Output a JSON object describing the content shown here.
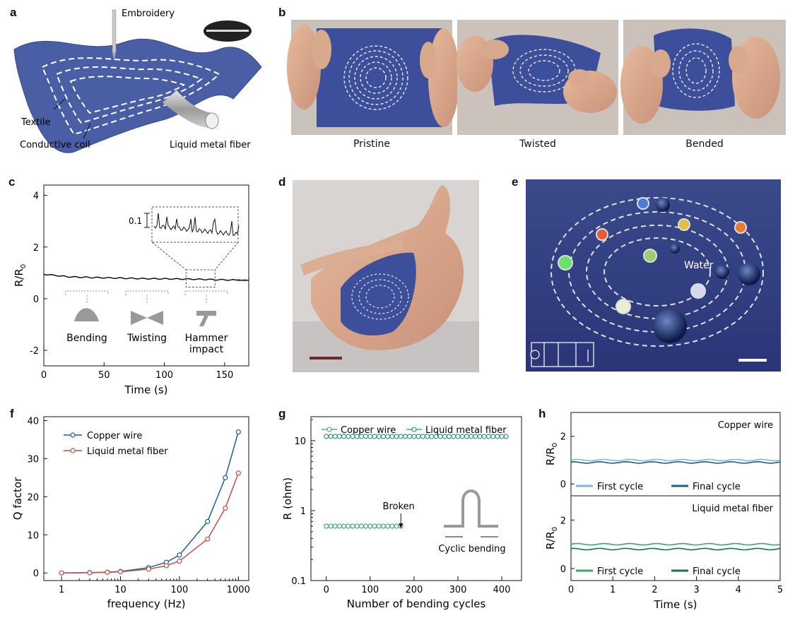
{
  "panels": {
    "a": {
      "label": "a",
      "labels": [
        "Embroidery",
        "Textile",
        "Conductive coil",
        "Liquid metal fiber"
      ]
    },
    "b": {
      "label": "b",
      "captions": [
        "Pristine",
        "Twisted",
        "Bended"
      ]
    },
    "c": {
      "label": "c"
    },
    "d": {
      "label": "d"
    },
    "e": {
      "label": "e",
      "annotation": "Water"
    },
    "f": {
      "label": "f"
    },
    "g": {
      "label": "g"
    },
    "h": {
      "label": "h"
    }
  },
  "chart_data": [
    {
      "id": "c",
      "type": "line",
      "xlabel": "Time (s)",
      "ylabel": "R/R0",
      "xlim": [
        0,
        170
      ],
      "ylim": [
        -2.6,
        4.4
      ],
      "xticks": [
        0,
        50,
        100,
        150
      ],
      "yticks": [
        -2,
        0,
        2,
        4
      ],
      "series": [
        {
          "x": [
            0,
            20,
            40,
            60,
            80,
            100,
            120,
            140,
            160,
            170
          ],
          "y": [
            0.95,
            0.85,
            0.82,
            0.8,
            0.78,
            0.77,
            0.76,
            0.74,
            0.72,
            0.71
          ]
        }
      ],
      "inset_scale": "0.1",
      "actions": [
        "Bending",
        "Twisting",
        "Hammer\nimpact"
      ]
    },
    {
      "id": "f",
      "type": "line",
      "xscale": "log",
      "xlabel": "frequency (Hz)",
      "ylabel": "Q factor",
      "xlim": [
        0.5,
        1500
      ],
      "ylim": [
        -2,
        41
      ],
      "xticks": [
        1,
        10,
        100,
        1000
      ],
      "yticks": [
        0,
        10,
        20,
        30,
        40
      ],
      "legend": "top-left",
      "series": [
        {
          "name": "Copper wire",
          "color": "#1f5f8b",
          "x": [
            1,
            3,
            6,
            10,
            30,
            60,
            100,
            300,
            600,
            1000
          ],
          "y": [
            0,
            0.1,
            0.2,
            0.4,
            1.4,
            2.8,
            4.7,
            13.5,
            25,
            37
          ]
        },
        {
          "name": "Liquid metal fiber",
          "color": "#c0504d",
          "x": [
            1,
            3,
            6,
            10,
            30,
            60,
            100,
            300,
            600,
            1000
          ],
          "y": [
            0,
            0.05,
            0.15,
            0.3,
            1.0,
            1.9,
            3.1,
            8.9,
            17,
            26.2
          ]
        }
      ]
    },
    {
      "id": "g",
      "type": "scatter",
      "yscale": "log",
      "xlabel": "Number of bending cycles",
      "ylabel": "R (ohm)",
      "xlim": [
        -35,
        445
      ],
      "ylim": [
        0.1,
        22
      ],
      "xticks": [
        0,
        100,
        200,
        300,
        400
      ],
      "yticks": [
        0.1,
        1,
        10
      ],
      "legend": "top",
      "series": [
        {
          "name": "Copper wire",
          "color": "#3aa866",
          "step": 10,
          "x_end": 170,
          "y": 0.6
        },
        {
          "name": "Liquid metal fiber",
          "color": "#2a8a7a",
          "step": 10,
          "x_end": 410,
          "y": 11.5
        }
      ],
      "annotations": [
        "Broken",
        "Cyclic bending"
      ]
    },
    {
      "id": "h",
      "type": "line",
      "xlabel": "Time (s)",
      "ylabel": "R/R0",
      "xlim": [
        0,
        5
      ],
      "xticks": [
        0,
        1,
        2,
        3,
        4,
        5
      ],
      "subplots": [
        {
          "title": "Copper wire",
          "ylim": [
            -0.5,
            3
          ],
          "yticks": [
            0,
            2
          ],
          "series": [
            {
              "name": "First cycle",
              "color": "#7fb8d8",
              "y": 1.0
            },
            {
              "name": "Final cycle",
              "color": "#1f5f8b",
              "y": 0.9
            }
          ]
        },
        {
          "title": "Liquid metal fiber",
          "ylim": [
            -0.5,
            3
          ],
          "yticks": [
            0,
            2
          ],
          "series": [
            {
              "name": "First cycle",
              "color": "#3aa866",
              "y": 1.0
            },
            {
              "name": "Final cycle",
              "color": "#1d6b5e",
              "y": 0.8
            }
          ]
        }
      ]
    }
  ]
}
